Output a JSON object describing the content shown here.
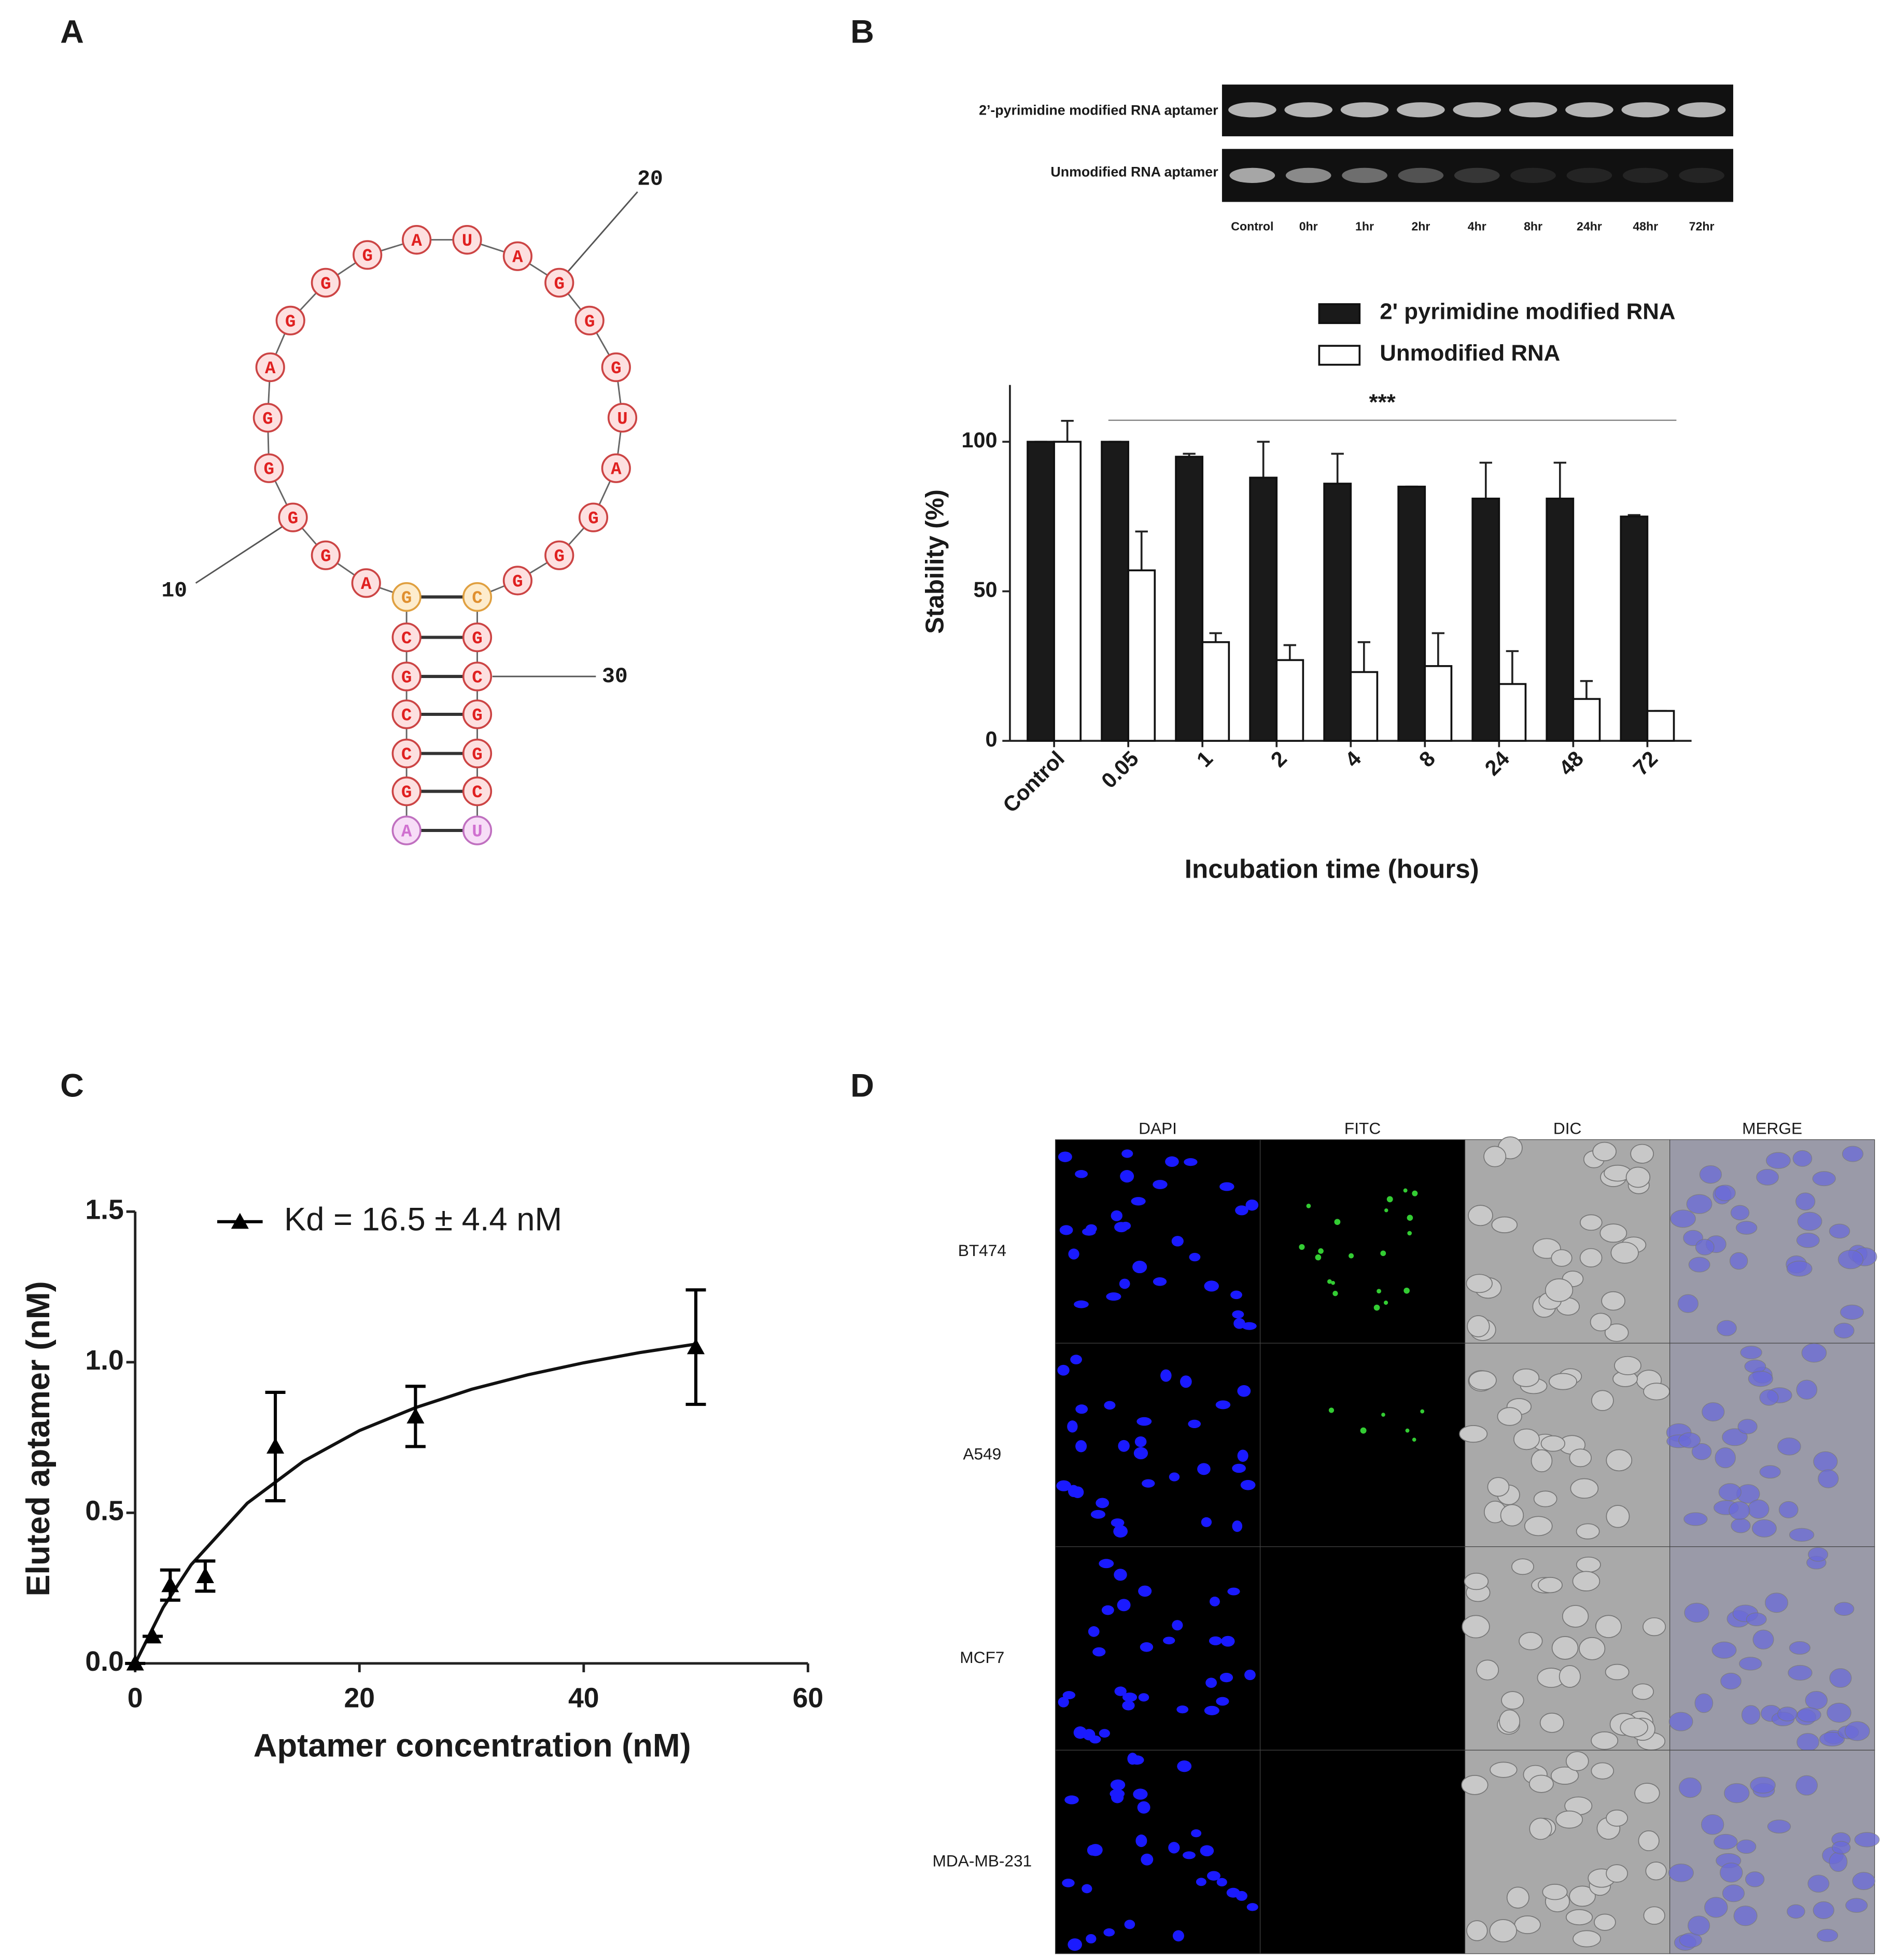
{
  "panel_labels": [
    "A",
    "B",
    "C",
    "D"
  ],
  "structure": {
    "sequence": [
      "A",
      "G",
      "C",
      "C",
      "G",
      "C",
      "G",
      "A",
      "G",
      "G",
      "G",
      "G",
      "A",
      "G",
      "G",
      "G",
      "A",
      "U",
      "A",
      "G",
      "G",
      "G",
      "U",
      "A",
      "G",
      "G",
      "G",
      "C",
      "G",
      "C",
      "G",
      "G",
      "C",
      "U"
    ],
    "position_labels": [
      "10",
      "20",
      "30"
    ]
  },
  "gel": {
    "row_labels": [
      "2’-pyrimidine modified RNA aptamer",
      "Unmodified RNA aptamer"
    ],
    "lane_labels": [
      "Control",
      "0hr",
      "1hr",
      "2hr",
      "4hr",
      "8hr",
      "24hr",
      "48hr",
      "72hr"
    ]
  },
  "chart_data": [
    {
      "type": "bar",
      "x_label": "Incubation time (hours)",
      "y_label": "Stability (%)",
      "annotation": "***",
      "categories": [
        "Control",
        "0.05",
        "1",
        "2",
        "4",
        "8",
        "24",
        "48",
        "72"
      ],
      "series": [
        {
          "name": "2' pyrimidine modified RNA",
          "color": "#1a1a1a",
          "values": [
            100,
            100,
            95,
            88,
            86,
            85,
            81,
            81,
            75
          ],
          "errors": [
            0,
            0,
            1,
            12,
            10,
            0,
            12,
            12,
            0.5
          ]
        },
        {
          "name": "Unmodified RNA",
          "color": "#ffffff",
          "values": [
            100,
            57,
            33,
            27,
            23,
            25,
            19,
            14,
            10
          ],
          "errors": [
            7,
            13,
            3,
            5,
            10,
            11,
            11,
            6,
            0
          ]
        }
      ],
      "ylim": [
        0,
        119
      ],
      "yticks": [
        0,
        50,
        100
      ]
    },
    {
      "type": "scatter",
      "x_label": "Aptamer concentration (nM)",
      "y_label": "Eluted aptamer (nM)",
      "series": [
        {
          "name": "Kd = 16.5 ± 4.4 nM",
          "color": "#000000",
          "x": [
            0,
            1.5625,
            3.125,
            6.25,
            12.5,
            25,
            50
          ],
          "values": [
            0,
            0.09,
            0.26,
            0.29,
            0.72,
            0.82,
            1.05
          ],
          "errors": [
            0,
            0,
            0.05,
            0.05,
            0.18,
            0.1,
            0.19
          ]
        }
      ],
      "fit": {
        "x": [
          0,
          2.5,
          5,
          10,
          15,
          20,
          25,
          30,
          35,
          40,
          45,
          50
        ],
        "values": [
          0,
          0.186,
          0.328,
          0.532,
          0.671,
          0.773,
          0.849,
          0.91,
          0.958,
          0.998,
          1.032,
          1.06
        ]
      },
      "xlim": [
        0,
        60
      ],
      "xticks": [
        0,
        20,
        40,
        60
      ],
      "ylim": [
        0,
        1.5
      ],
      "yticks": [
        {
          "value": 0,
          "label": "0.0"
        },
        0.5,
        {
          "value": 1,
          "label": "1.0"
        },
        1.5
      ]
    }
  ],
  "microscopy": {
    "column_labels": [
      "DAPI",
      "FITC",
      "DIC",
      "MERGE"
    ],
    "row_labels": [
      "BT474",
      "A549",
      "MCF7",
      "MDA-MB-231"
    ]
  }
}
